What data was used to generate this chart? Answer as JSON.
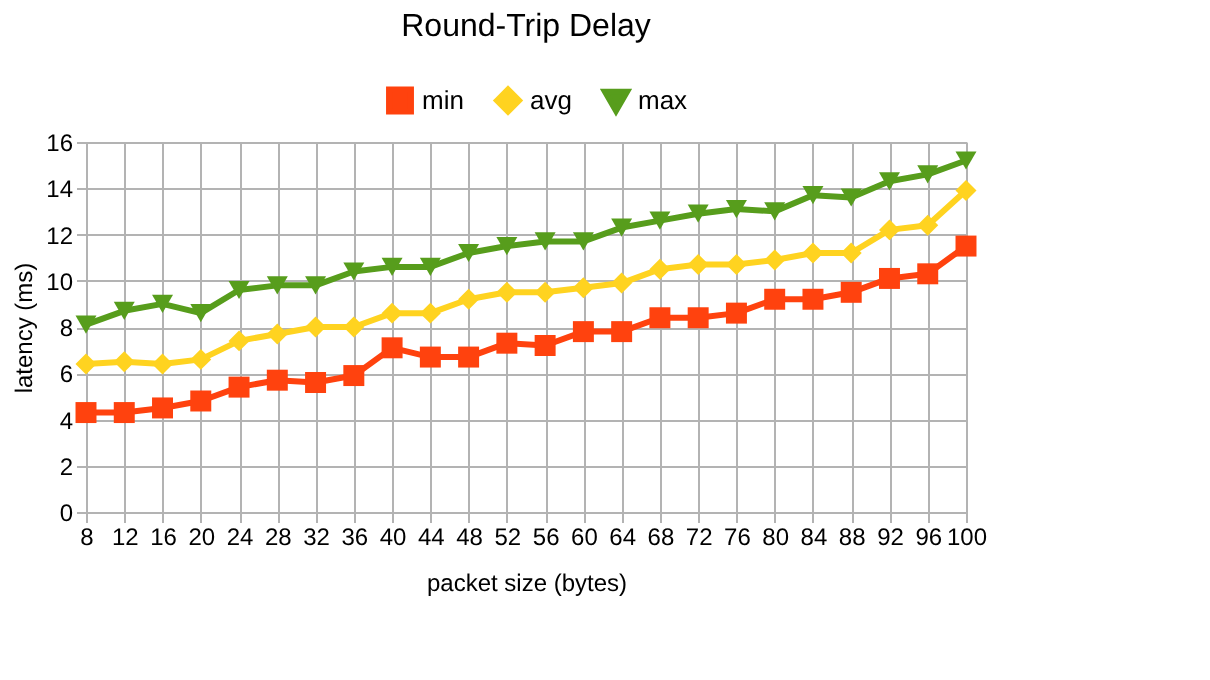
{
  "chart_data": {
    "type": "line",
    "title": "Round-Trip Delay",
    "xlabel": "packet size (bytes)",
    "ylabel": "latency (ms)",
    "categories": [
      "8",
      "12",
      "16",
      "20",
      "24",
      "28",
      "32",
      "36",
      "40",
      "44",
      "48",
      "52",
      "56",
      "60",
      "64",
      "68",
      "72",
      "76",
      "80",
      "84",
      "88",
      "92",
      "96",
      "100"
    ],
    "series": [
      {
        "name": "min",
        "color": "#ff420e",
        "marker": "square",
        "values": [
          4.3,
          4.3,
          4.5,
          4.8,
          5.4,
          5.7,
          5.6,
          5.9,
          7.1,
          6.7,
          6.7,
          7.3,
          7.2,
          7.8,
          7.8,
          8.4,
          8.4,
          8.6,
          9.2,
          9.2,
          9.5,
          10.1,
          10.3,
          11.5
        ]
      },
      {
        "name": "avg",
        "color": "#ffd320",
        "marker": "diamond",
        "values": [
          6.4,
          6.5,
          6.4,
          6.6,
          7.4,
          7.7,
          8.0,
          8.0,
          8.6,
          8.6,
          9.2,
          9.5,
          9.5,
          9.7,
          9.9,
          10.5,
          10.7,
          10.7,
          10.9,
          11.2,
          11.2,
          12.2,
          12.4,
          13.9
        ]
      },
      {
        "name": "max",
        "color": "#579d1c",
        "marker": "triangle-down",
        "values": [
          8.1,
          8.7,
          9.0,
          8.6,
          9.6,
          9.8,
          9.8,
          10.4,
          10.6,
          10.6,
          11.2,
          11.5,
          11.7,
          11.7,
          12.3,
          12.6,
          12.9,
          13.1,
          13.0,
          13.7,
          13.6,
          14.3,
          14.6,
          15.2
        ]
      }
    ],
    "ylim": [
      0,
      16
    ],
    "yticks": [
      0,
      2,
      4,
      6,
      8,
      10,
      12,
      14,
      16
    ],
    "grid": true,
    "legend": "top",
    "line_style": "solid"
  }
}
